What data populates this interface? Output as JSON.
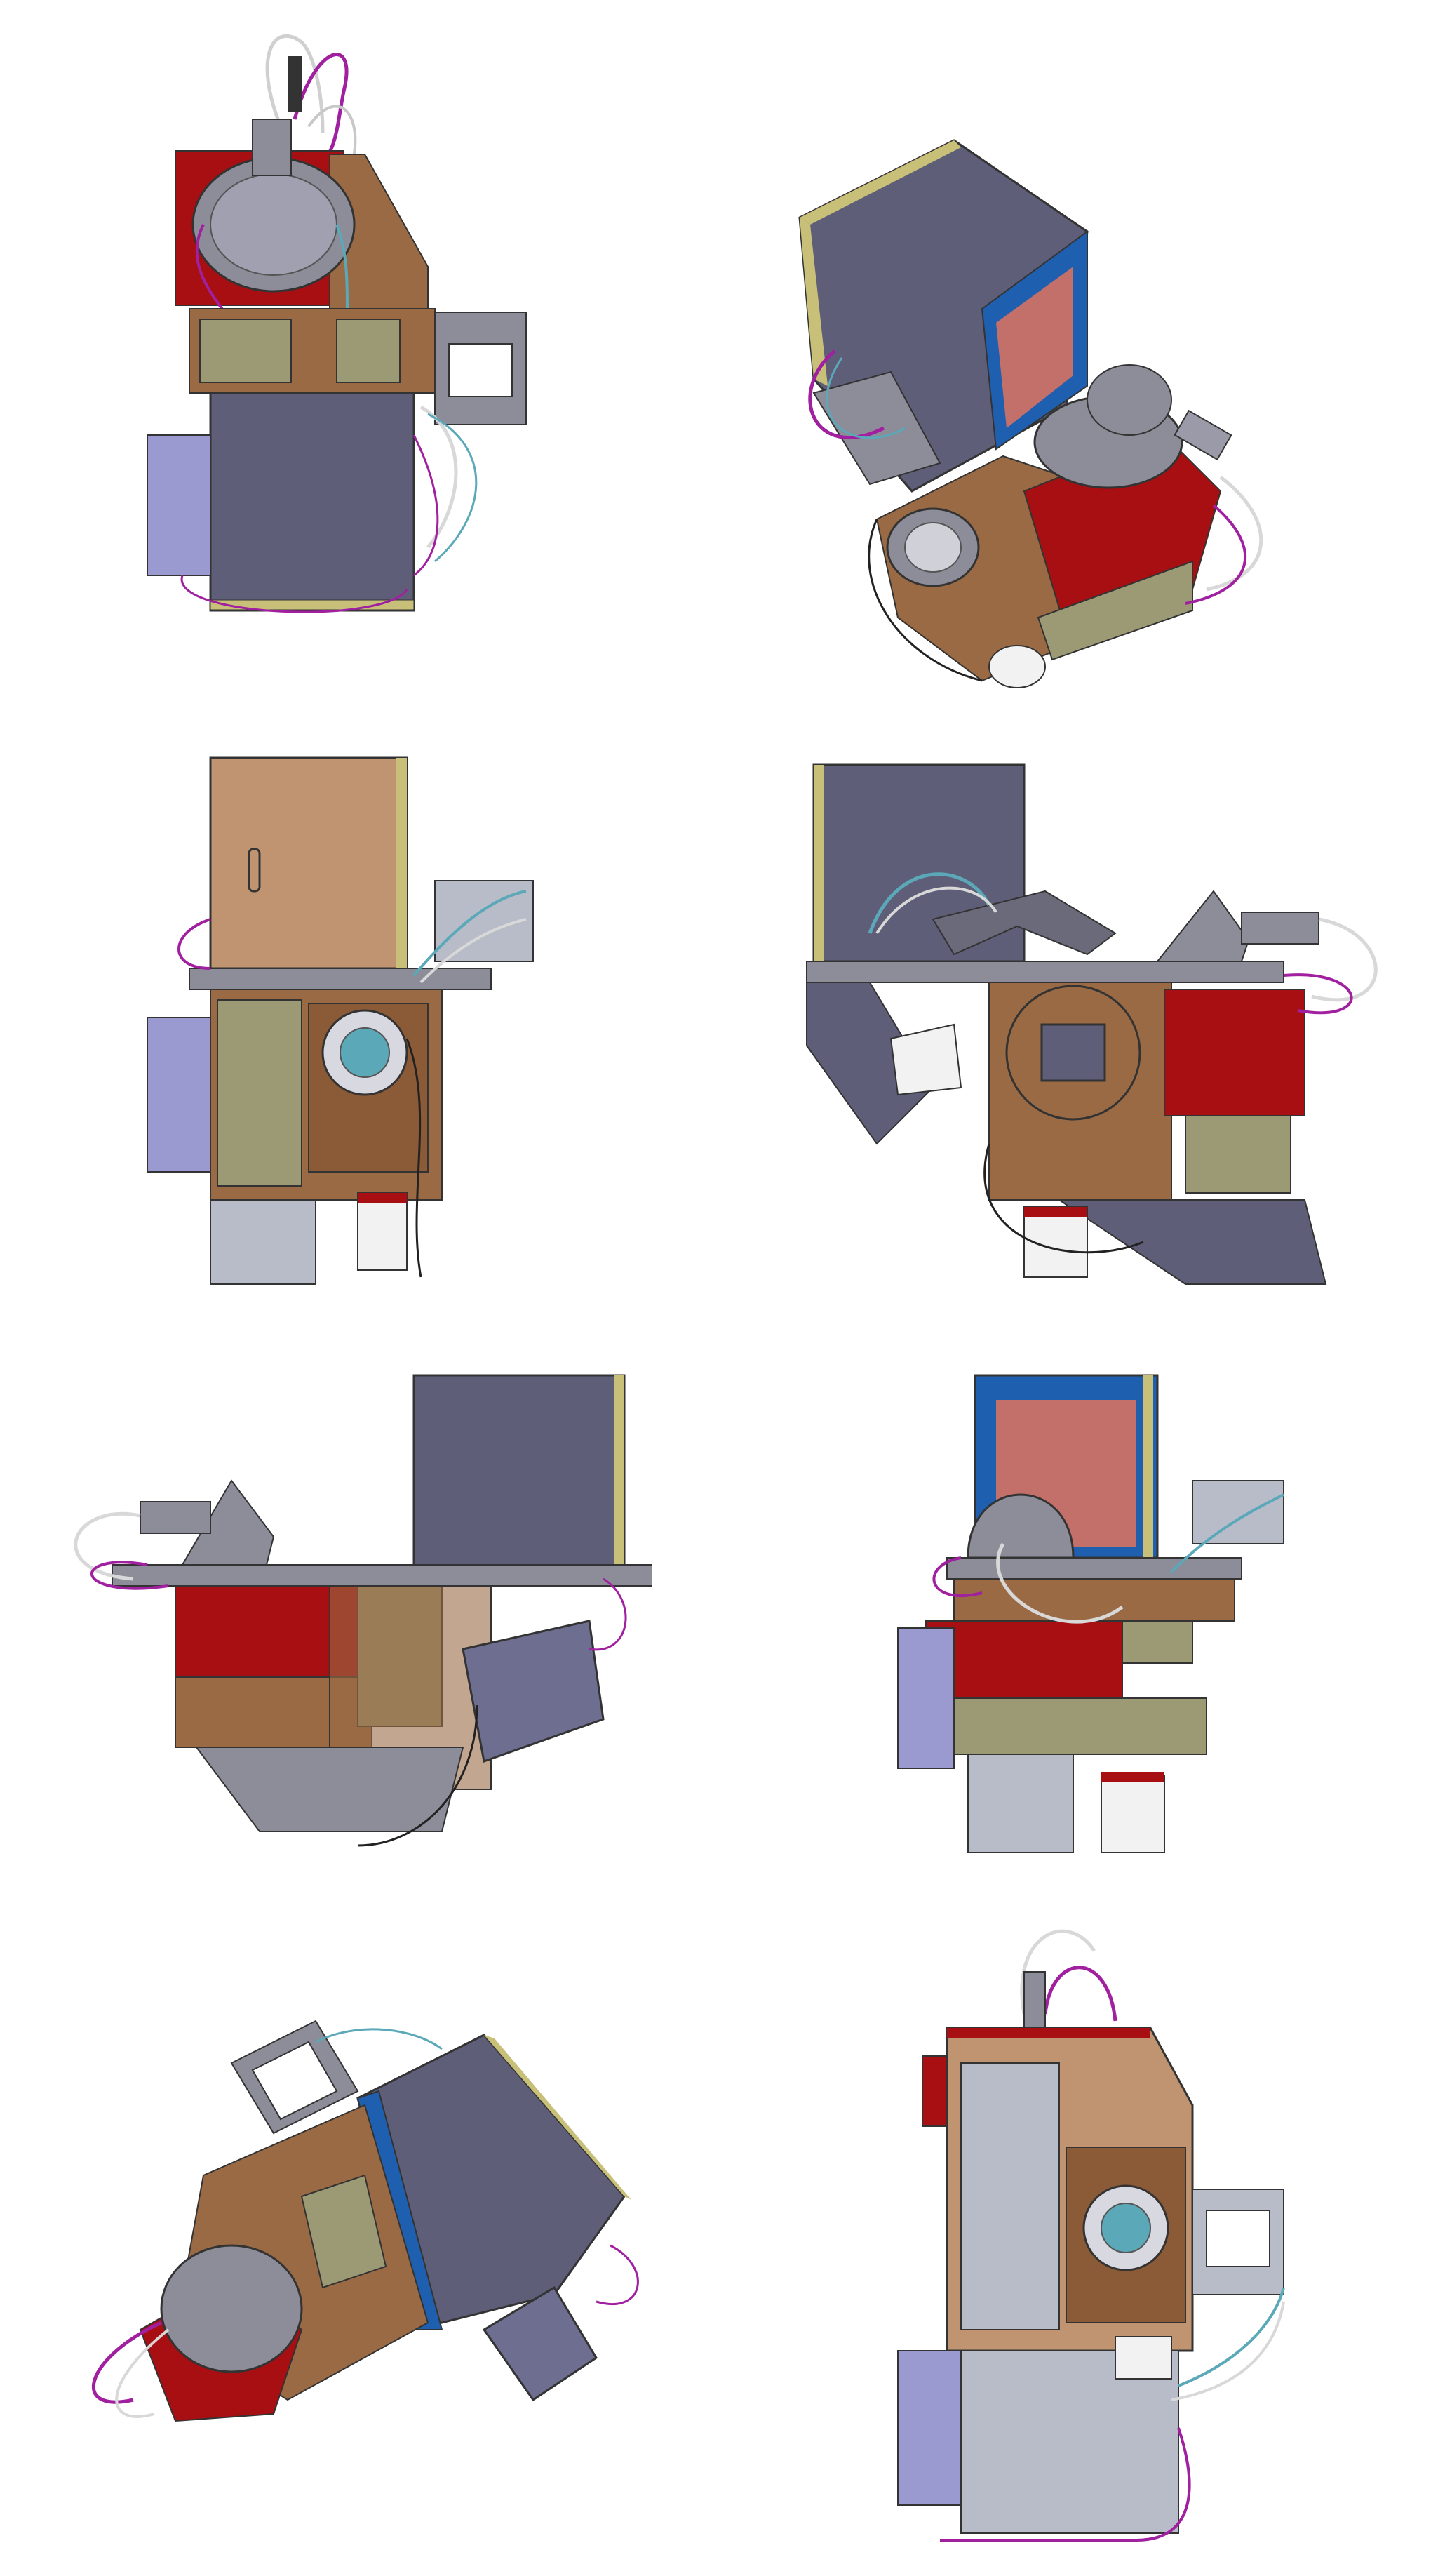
{
  "figure": {
    "views": [
      {
        "id": "view-1",
        "orientation": "front-top"
      },
      {
        "id": "view-2",
        "orientation": "isometric-rear"
      },
      {
        "id": "view-3",
        "orientation": "left-side"
      },
      {
        "id": "view-4",
        "orientation": "right-side"
      },
      {
        "id": "view-5",
        "orientation": "rear"
      },
      {
        "id": "view-6",
        "orientation": "front"
      },
      {
        "id": "view-7",
        "orientation": "isometric-front"
      },
      {
        "id": "view-8",
        "orientation": "top"
      }
    ],
    "colors": {
      "housing_gray": "#5e5e78",
      "copper": "#9a6a44",
      "tan": "#c09470",
      "red": "#a80f12",
      "olive": "#9b9a74",
      "yellow_trim": "#c8c078",
      "steel": "#8d8d9a",
      "light_steel": "#b8bcc8",
      "blue_frame": "#1f5fb0",
      "salmon": "#c4706a",
      "lavender": "#9a9ad0",
      "cable_purple": "#a020a0",
      "cable_teal": "#5aa8b8",
      "cable_white": "#d8d8d8",
      "white_drum": "#f2f2f2"
    }
  }
}
